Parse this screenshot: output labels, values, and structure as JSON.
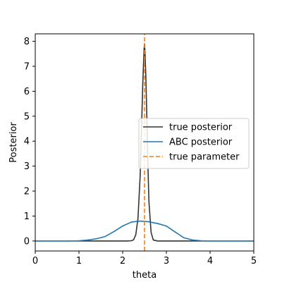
{
  "chart_data": {
    "type": "line",
    "xlabel": "theta",
    "ylabel": "Posterior",
    "xlim": [
      0,
      5
    ],
    "ylim": [
      -0.4,
      8.3
    ],
    "xticks": [
      0,
      1,
      2,
      3,
      4,
      5
    ],
    "yticks": [
      0,
      1,
      2,
      3,
      4,
      5,
      6,
      7,
      8
    ],
    "grid": false,
    "legend_position": "center-right",
    "series": [
      {
        "name": "true posterior",
        "color": "#333333",
        "style": "solid",
        "x": [
          0,
          2.1,
          2.2,
          2.25,
          2.3,
          2.35,
          2.4,
          2.43,
          2.46,
          2.49,
          2.5,
          2.51,
          2.53,
          2.55,
          2.58,
          2.6,
          2.65,
          2.7,
          2.8,
          5
        ],
        "y": [
          0,
          0,
          0.01,
          0.05,
          0.25,
          0.9,
          2.6,
          4.4,
          6.3,
          7.7,
          7.9,
          7.6,
          6.6,
          5.2,
          2.9,
          1.6,
          0.35,
          0.04,
          0,
          0
        ]
      },
      {
        "name": "ABC posterior",
        "color": "#1f77b4",
        "style": "solid",
        "x": [
          0,
          0.8,
          1.0,
          1.2,
          1.4,
          1.6,
          1.8,
          2.0,
          2.2,
          2.4,
          2.6,
          2.8,
          3.0,
          3.2,
          3.4,
          3.6,
          3.8,
          4.0,
          4.5,
          5.0
        ],
        "y": [
          0,
          0,
          0.01,
          0.04,
          0.09,
          0.18,
          0.38,
          0.6,
          0.76,
          0.8,
          0.77,
          0.7,
          0.6,
          0.36,
          0.13,
          0.04,
          0.01,
          0,
          0,
          0
        ]
      },
      {
        "name": "true parameter",
        "color": "#ff7f0e",
        "style": "dashed",
        "x": [
          2.5,
          2.5
        ],
        "y": [
          -0.4,
          8.3
        ]
      }
    ]
  }
}
